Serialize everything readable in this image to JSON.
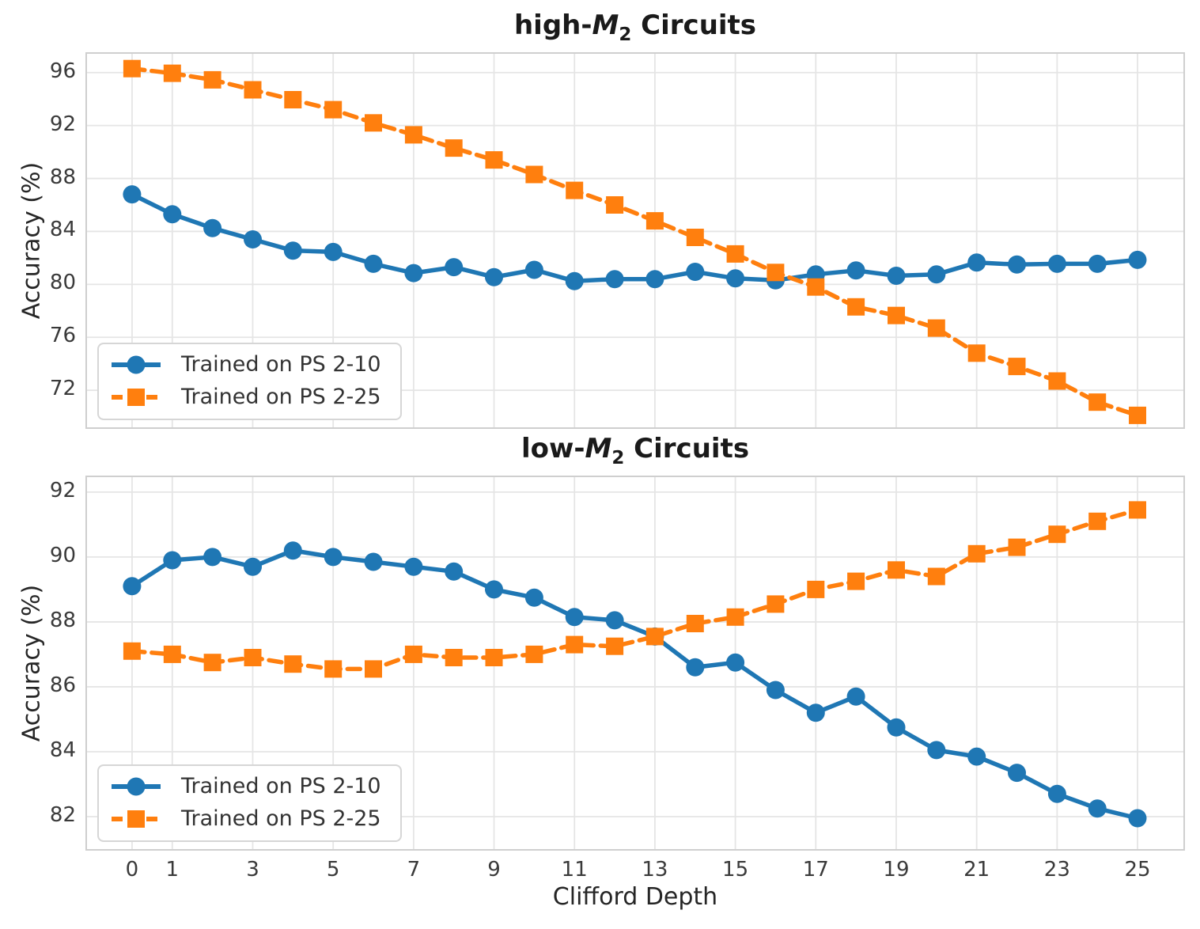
{
  "figure": {
    "xlabel": "Clifford Depth",
    "ylabel": "Accuracy (%)",
    "colors": {
      "blue": "#1f77b4",
      "orange": "#ff7f0e",
      "grid": "#e5e5e5",
      "spine": "#cfcfcf",
      "tick_text": "#3a3a3a",
      "title_text": "#1a1a1a"
    }
  },
  "chart_data": [
    {
      "type": "line",
      "title": {
        "prefix": "high-",
        "math_var": "M",
        "math_sub": "2",
        "suffix": " Circuits",
        "plain": "high-M2 Circuits"
      },
      "xlabel": "Clifford Depth",
      "ylabel": "Accuracy (%)",
      "grid": true,
      "legend_position": "lower left",
      "x": [
        0,
        1,
        2,
        3,
        4,
        5,
        6,
        7,
        8,
        9,
        10,
        11,
        12,
        13,
        14,
        15,
        16,
        17,
        18,
        19,
        20,
        21,
        22,
        23,
        24,
        25
      ],
      "xticks": [
        0,
        1,
        3,
        5,
        7,
        9,
        11,
        13,
        15,
        17,
        19,
        21,
        23,
        25
      ],
      "yticks": [
        72,
        76,
        80,
        84,
        88,
        92,
        96
      ],
      "xlim": [
        -1.12,
        26.14
      ],
      "ylim": [
        69.2,
        97.42
      ],
      "series": [
        {
          "name": "Trained on PS 2-10",
          "color": "#1f77b4",
          "marker": "circle",
          "line": "solid",
          "values": [
            86.8,
            85.3,
            84.25,
            83.4,
            82.55,
            82.45,
            81.55,
            80.85,
            81.3,
            80.55,
            81.1,
            80.25,
            80.4,
            80.4,
            80.95,
            80.45,
            80.3,
            80.75,
            81.05,
            80.65,
            80.75,
            81.65,
            81.5,
            81.55,
            81.55,
            81.85
          ]
        },
        {
          "name": "Trained on PS 2-25",
          "color": "#ff7f0e",
          "marker": "square",
          "line": "dashed",
          "values": [
            96.3,
            95.95,
            95.45,
            94.7,
            93.95,
            93.2,
            92.2,
            91.3,
            90.3,
            89.4,
            88.3,
            87.1,
            86.0,
            84.8,
            83.55,
            82.3,
            80.9,
            79.8,
            78.3,
            77.65,
            76.7,
            74.8,
            73.8,
            72.7,
            71.1,
            70.1
          ]
        }
      ]
    },
    {
      "type": "line",
      "title": {
        "prefix": "low-",
        "math_var": "M",
        "math_sub": "2",
        "suffix": " Circuits",
        "plain": "low-M2 Circuits"
      },
      "xlabel": "Clifford Depth",
      "ylabel": "Accuracy (%)",
      "grid": true,
      "legend_position": "lower left",
      "x": [
        0,
        1,
        2,
        3,
        4,
        5,
        6,
        7,
        8,
        9,
        10,
        11,
        12,
        13,
        14,
        15,
        16,
        17,
        18,
        19,
        20,
        21,
        22,
        23,
        24,
        25
      ],
      "xticks": [
        0,
        1,
        3,
        5,
        7,
        9,
        11,
        13,
        15,
        17,
        19,
        21,
        23,
        25
      ],
      "yticks": [
        82,
        84,
        86,
        88,
        90,
        92
      ],
      "xlim": [
        -1.12,
        26.14
      ],
      "ylim": [
        81.0,
        92.46
      ],
      "series": [
        {
          "name": "Trained on PS 2-10",
          "color": "#1f77b4",
          "marker": "circle",
          "line": "solid",
          "values": [
            89.1,
            89.9,
            90.0,
            89.7,
            90.2,
            90.0,
            89.85,
            89.7,
            89.55,
            89.0,
            88.75,
            88.15,
            88.05,
            87.55,
            86.6,
            86.75,
            85.9,
            85.2,
            85.7,
            84.75,
            84.05,
            83.85,
            83.35,
            82.7,
            82.25,
            81.95
          ]
        },
        {
          "name": "Trained on PS 2-25",
          "color": "#ff7f0e",
          "marker": "square",
          "line": "dashed",
          "values": [
            87.1,
            87.0,
            86.75,
            86.9,
            86.7,
            86.55,
            86.55,
            87.0,
            86.9,
            86.9,
            87.0,
            87.3,
            87.25,
            87.55,
            87.95,
            88.15,
            88.55,
            89.0,
            89.25,
            89.6,
            89.4,
            90.1,
            90.3,
            90.7,
            91.1,
            91.45
          ]
        }
      ]
    }
  ]
}
